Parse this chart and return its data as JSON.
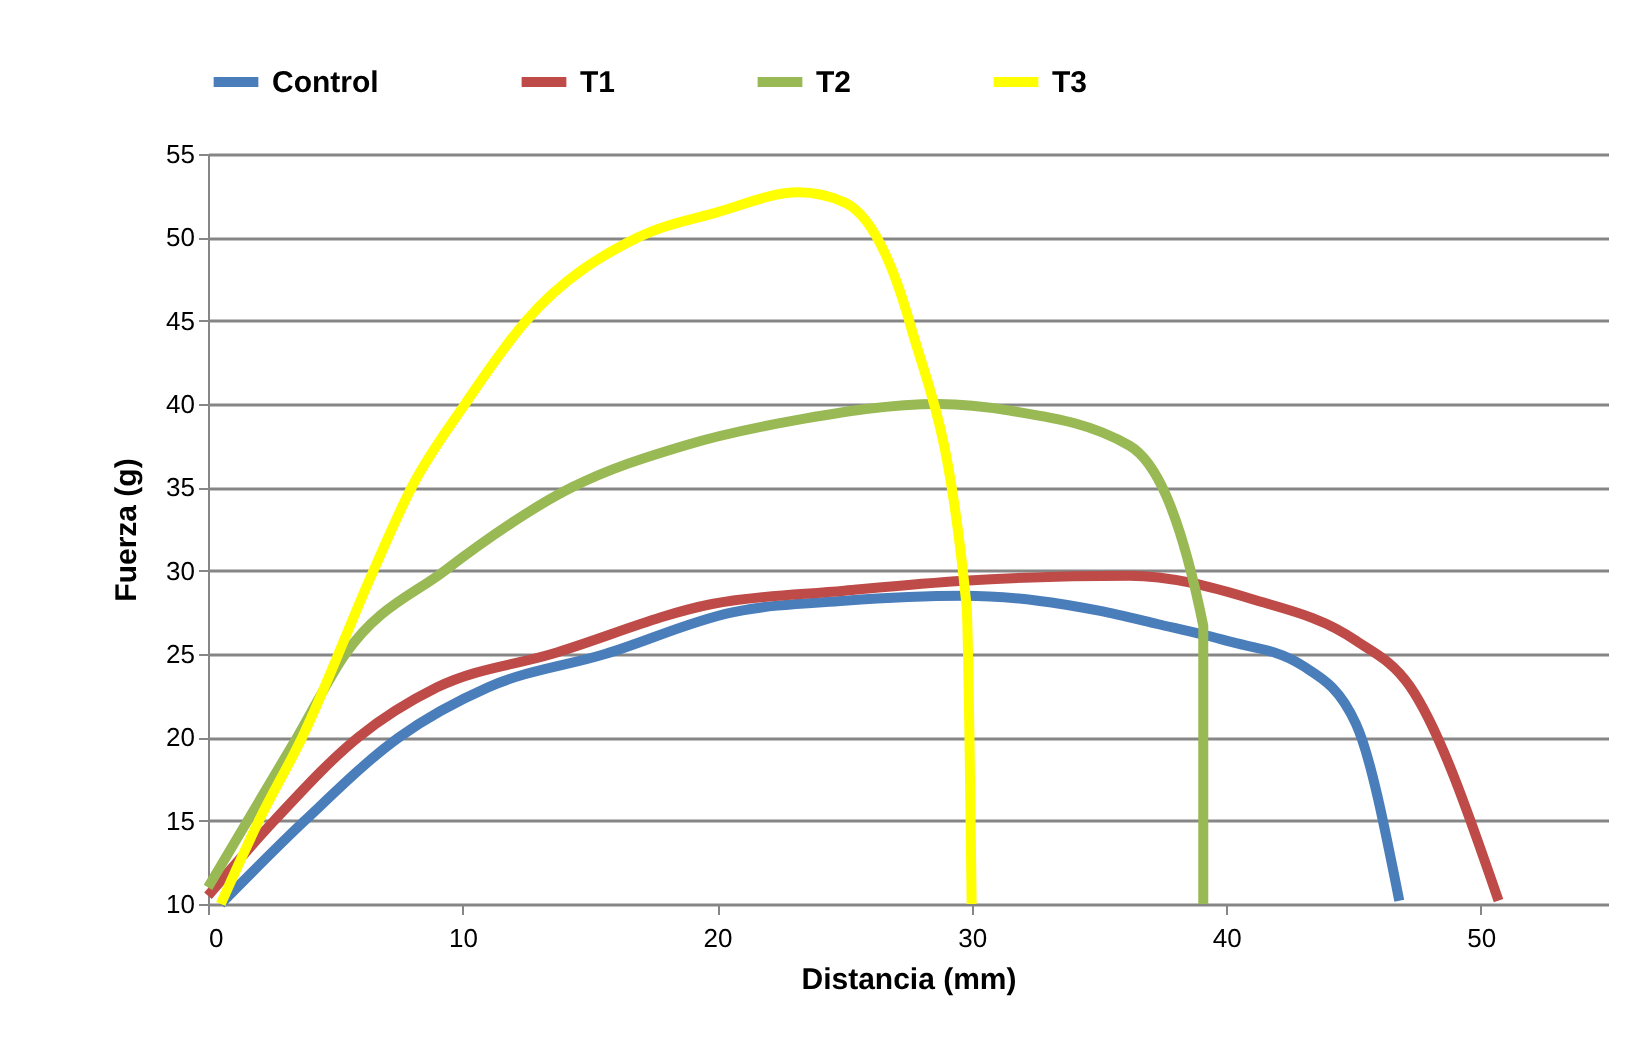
{
  "chart_data": {
    "type": "line",
    "xlabel": "Distancia (mm)",
    "ylabel": "Fuerza (g)",
    "xlim": [
      0,
      55
    ],
    "xticks": [
      0,
      10,
      20,
      30,
      40,
      50
    ],
    "ylim": [
      10,
      55
    ],
    "yticks": [
      10,
      15,
      20,
      25,
      30,
      35,
      40,
      45,
      50,
      55
    ],
    "grid": "y",
    "legend": "top",
    "marker": "none",
    "line_style": "solid",
    "series": [
      {
        "name": "Control",
        "color": "#4a7ebb",
        "x": [
          0.5,
          3.8,
          7.5,
          11,
          15.6,
          20.6,
          25,
          29.7,
          32.6,
          35,
          37.3,
          40,
          43,
          45.1,
          46.8
        ],
        "values": [
          10,
          15,
          20,
          23,
          25,
          27.5,
          28.2,
          28.5,
          28.2,
          27.6,
          26.8,
          25.8,
          24.3,
          20.8,
          10.2
        ]
      },
      {
        "name": "T1",
        "color": "#be4b48",
        "x": [
          0,
          2.6,
          5.9,
          9,
          13.5,
          19.8,
          25,
          29.7,
          36.2,
          41,
          45.1,
          47.2,
          50.7
        ],
        "values": [
          10.5,
          15,
          20,
          23,
          25,
          28,
          28.8,
          29.4,
          29.7,
          28.3,
          25.8,
          23.1,
          10.2
        ]
      },
      {
        "name": "T2",
        "color": "#98b954",
        "x": [
          0,
          3.5,
          5.4,
          9.3,
          14.3,
          18.7,
          23,
          28.7,
          31.5,
          36.2,
          39.1,
          39.1
        ],
        "values": [
          11,
          20,
          25,
          30,
          35,
          37.5,
          39,
          40,
          39.6,
          37.5,
          26.7,
          10
        ]
      },
      {
        "name": "T3",
        "color": "#ffff00",
        "x": [
          0.5,
          2,
          3.7,
          6.5,
          8,
          10.1,
          12.5,
          16.9,
          20,
          23.2,
          25,
          27.6,
          29.8,
          30
        ],
        "values": [
          10,
          15,
          20,
          30,
          35,
          40,
          45,
          50,
          51.5,
          52.7,
          52.1,
          44.7,
          27.9,
          10
        ]
      }
    ]
  }
}
